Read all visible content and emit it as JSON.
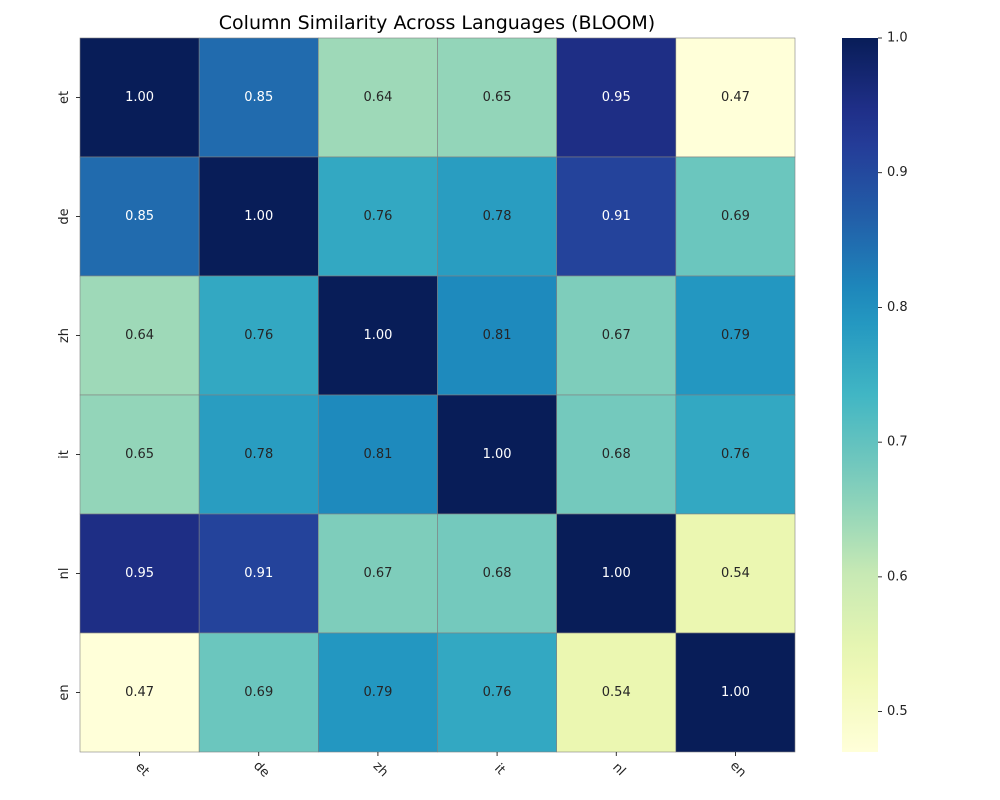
{
  "chart_data": {
    "type": "heatmap",
    "title": "Column Similarity Across Languages (BLOOM)",
    "x_categories": [
      "et",
      "de",
      "zh",
      "it",
      "nl",
      "en"
    ],
    "y_categories": [
      "et",
      "de",
      "zh",
      "it",
      "nl",
      "en"
    ],
    "values": [
      [
        1.0,
        0.85,
        0.64,
        0.65,
        0.95,
        0.47
      ],
      [
        0.85,
        1.0,
        0.76,
        0.78,
        0.91,
        0.69
      ],
      [
        0.64,
        0.76,
        1.0,
        0.81,
        0.67,
        0.79
      ],
      [
        0.65,
        0.78,
        0.81,
        1.0,
        0.68,
        0.76
      ],
      [
        0.95,
        0.91,
        0.67,
        0.68,
        1.0,
        0.54
      ],
      [
        0.47,
        0.69,
        0.79,
        0.76,
        0.54,
        1.0
      ]
    ],
    "value_format": "0.00",
    "colormap": "YlGnBu",
    "colorbar": {
      "range": [
        0.47,
        1.0
      ],
      "ticks": [
        "0.5",
        "0.6",
        "0.7",
        "0.8",
        "0.9",
        "1.0"
      ]
    },
    "grid_line_color": "#808080"
  }
}
